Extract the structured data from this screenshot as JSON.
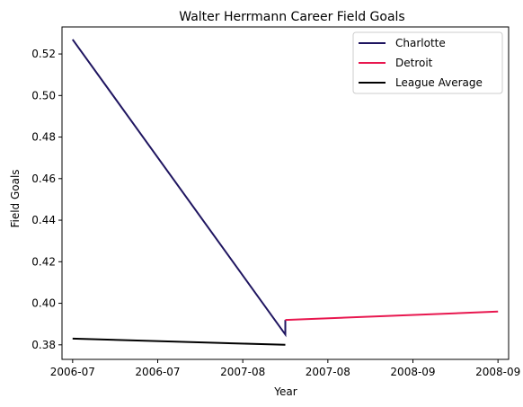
{
  "chart_data": {
    "type": "line",
    "title": "Walter Herrmann Career Field Goals",
    "xlabel": "Year",
    "ylabel": "Field Goals",
    "x_tick_labels": [
      "2006-07",
      "2006-07",
      "2007-08",
      "2007-08",
      "2008-09",
      "2008-09"
    ],
    "y_ticks": [
      0.38,
      0.4,
      0.42,
      0.44,
      0.46,
      0.48,
      0.5,
      0.52
    ],
    "y_tick_labels": [
      "0.38",
      "0.40",
      "0.42",
      "0.44",
      "0.46",
      "0.48",
      "0.50",
      "0.52"
    ],
    "xlim": [
      -0.05,
      2.05
    ],
    "ylim": [
      0.373,
      0.533
    ],
    "grid": false,
    "legend_position": "top-right",
    "series": [
      {
        "name": "Charlotte",
        "color": "#1f1560",
        "points": [
          [
            0,
            0.527
          ],
          [
            1,
            0.385
          ],
          [
            1,
            0.392
          ]
        ]
      },
      {
        "name": "Detroit",
        "color": "#e8174f",
        "points": [
          [
            1,
            0.392
          ],
          [
            2,
            0.396
          ]
        ]
      },
      {
        "name": "League Average",
        "color": "#000000",
        "points": [
          [
            0,
            0.383
          ],
          [
            1,
            0.38
          ]
        ]
      }
    ]
  }
}
